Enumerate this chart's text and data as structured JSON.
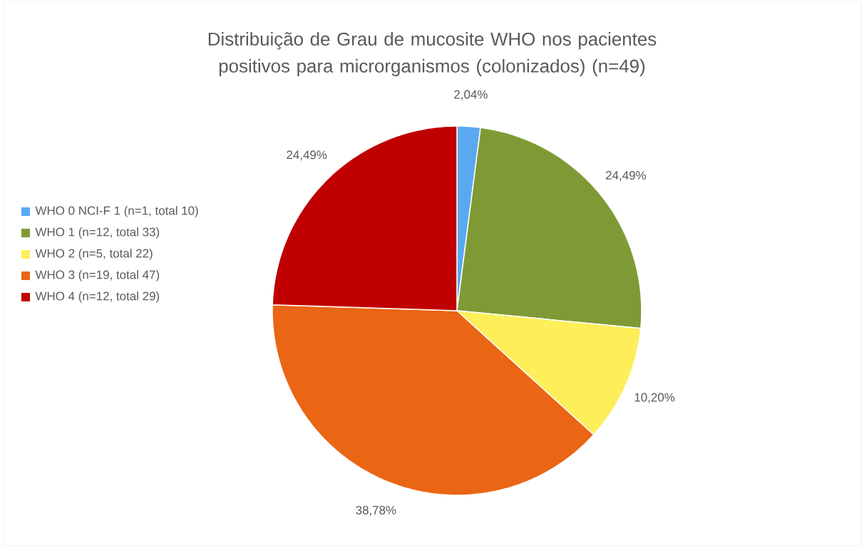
{
  "chart_data": {
    "type": "pie",
    "title": "Distribuição de Grau de mucosite WHO nos pacientes positivos para microrganismos (colonizados)  (n=49)",
    "categories": [
      "WHO 0 NCI-F 1 (n=1, total 10)",
      "WHO 1 (n=12, total 33)",
      "WHO 2 (n=5, total 22)",
      "WHO 3 (n=19, total 47)",
      "WHO 4 (n=12, total 29)"
    ],
    "values": [
      2.04,
      24.49,
      10.2,
      38.78,
      24.49
    ],
    "value_labels": [
      "2,04%",
      "24,49%",
      "10,20%",
      "38,78%",
      "24,49%"
    ],
    "colors": [
      "#5aa9f0",
      "#7f9a35",
      "#fdee5a",
      "#ea6514",
      "#c00000"
    ],
    "legend": "left"
  }
}
